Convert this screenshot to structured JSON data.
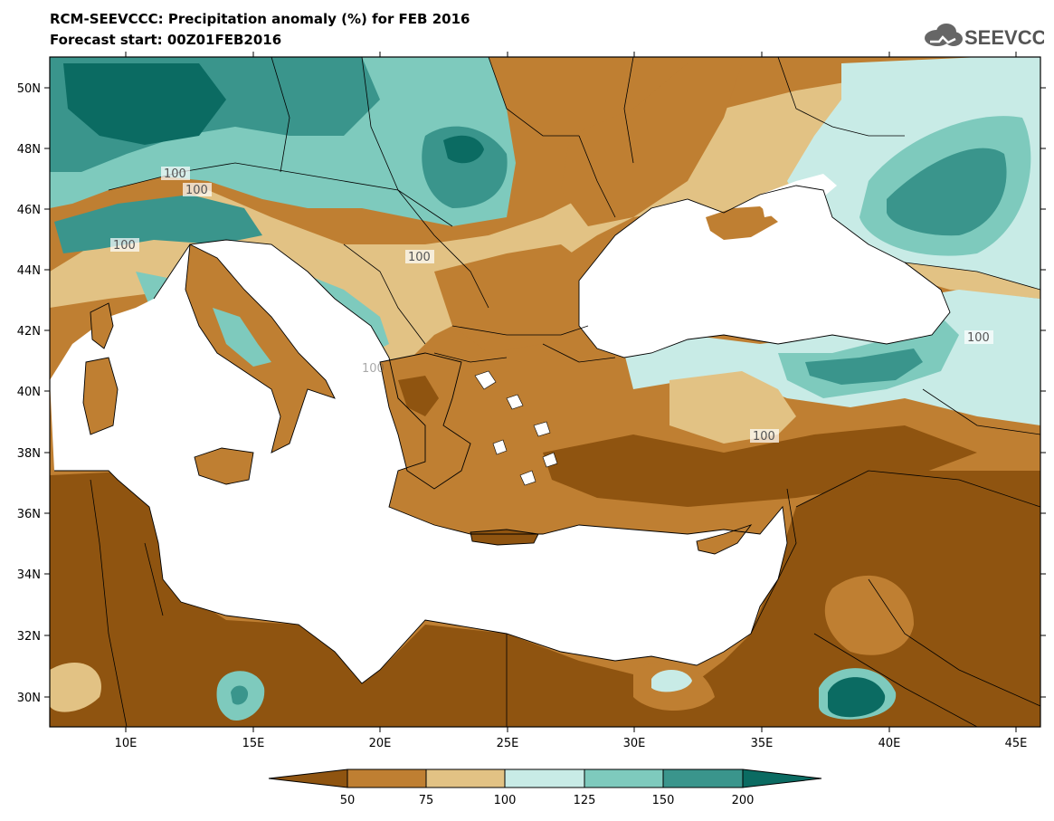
{
  "header": {
    "title": "RCM-SEEVCCC: Precipitation anomaly (%) for FEB 2016",
    "subtitle": "Forecast start: 00Z01FEB2016",
    "logo_text": "SEEVCCC"
  },
  "map": {
    "lon_range": [
      7,
      46
    ],
    "lat_range": [
      29,
      51
    ],
    "lat_ticks": [
      "50N",
      "48N",
      "46N",
      "44N",
      "42N",
      "40N",
      "38N",
      "36N",
      "34N",
      "32N",
      "30N"
    ],
    "lon_ticks": [
      "10E",
      "15E",
      "20E",
      "25E",
      "30E",
      "35E",
      "40E",
      "45E"
    ],
    "contour_labels": [
      "100",
      "100",
      "100",
      "100",
      "100",
      "100",
      "100"
    ],
    "water_color": "#ffffff"
  },
  "legend": {
    "boundaries": [
      "50",
      "75",
      "100",
      "125",
      "150",
      "200"
    ],
    "colors": [
      "#8f5410",
      "#bf7f32",
      "#e2c284",
      "#c8ebe6",
      "#7ecabd",
      "#3a958c",
      "#0b6b62"
    ]
  }
}
